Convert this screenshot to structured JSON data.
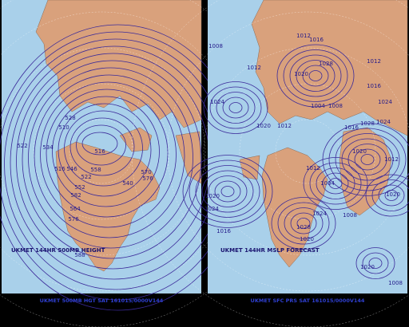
{
  "panels": [
    {
      "caption": "UKMET 144HR 500MB HEIGHT",
      "footer": "UKMET 500MB HGT SAT 161015/0000V144",
      "contour_labels": [
        522,
        534,
        510,
        516,
        528,
        546,
        516,
        522,
        552,
        558,
        570,
        576,
        540,
        582,
        564,
        576,
        588
      ]
    },
    {
      "caption": "UKMET 144HR MSLP FORECAST",
      "footer": "UKMET SFC PRS SAT 161015/0000V144",
      "contour_labels": [
        1008,
        1012,
        1016,
        1012,
        1028,
        1020,
        1012,
        1024,
        1016,
        1008,
        1004,
        1012,
        1020,
        1024,
        1016,
        1028,
        1024,
        1020,
        1012,
        1020,
        1024,
        1016,
        1020,
        1012,
        1004,
        1028,
        1024,
        1008,
        1020,
        1020,
        1008
      ]
    }
  ]
}
